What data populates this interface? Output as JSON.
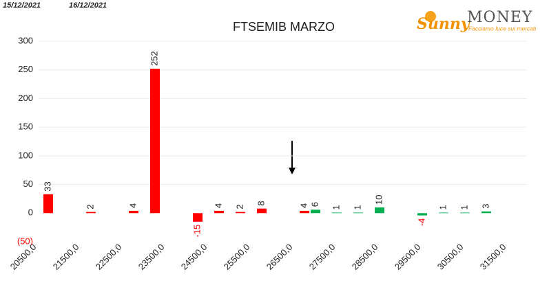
{
  "header": {
    "dates": [
      "15/12/2021",
      "16/12/2021"
    ]
  },
  "logo": {
    "name": "Sunny",
    "brand": "MONEY",
    "tagline": "Facciamo luce sui mercati"
  },
  "chart_data": {
    "type": "bar",
    "title": "FTSEMIB MARZO",
    "categories": [
      "20500,0",
      null,
      "21500,0",
      null,
      "22500,0",
      null,
      "23500,0",
      null,
      "24500,0",
      null,
      "25500,0",
      null,
      "26500,0",
      null,
      "27500,0",
      null,
      "28500,0",
      null,
      "29500,0",
      null,
      "30500,0",
      null,
      "31500,0"
    ],
    "series": [
      {
        "color": "#ff0000",
        "values": [
          null,
          33,
          null,
          2,
          null,
          4,
          252,
          null,
          -15,
          4,
          2,
          8,
          null,
          4,
          null,
          null,
          null,
          null,
          null,
          null,
          null,
          null,
          null
        ]
      },
      {
        "color": "#00b050",
        "values": [
          null,
          null,
          null,
          null,
          null,
          null,
          null,
          null,
          null,
          null,
          null,
          null,
          null,
          6,
          1,
          1,
          10,
          null,
          -4,
          1,
          1,
          3,
          null
        ]
      }
    ],
    "ylim": [
      -50,
      300
    ],
    "yticks": [
      {
        "value": -50,
        "label": "(50)"
      },
      0,
      50,
      100,
      150,
      200,
      250,
      300
    ],
    "grid": true
  }
}
